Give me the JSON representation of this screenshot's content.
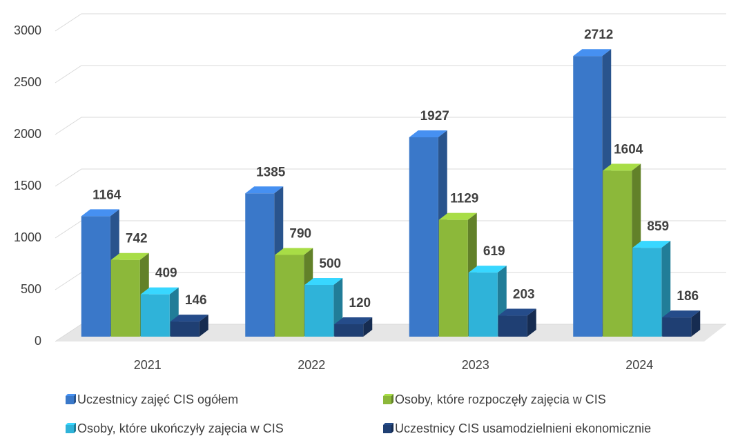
{
  "chart_data": {
    "type": "bar3d",
    "categories": [
      "2021",
      "2022",
      "2023",
      "2024"
    ],
    "series": [
      {
        "name": "Uczestnicy zajęć CIS ogółem",
        "color": "#3a78c9",
        "values": [
          1164,
          1385,
          1927,
          2712
        ]
      },
      {
        "name": "Osoby, które rozpoczęły zajęcia w CIS",
        "color": "#8cb83a",
        "values": [
          742,
          790,
          1129,
          1604
        ]
      },
      {
        "name": "Osoby, które ukończyły zajęcia w CIS",
        "color": "#2fb3d9",
        "values": [
          409,
          500,
          619,
          859
        ]
      },
      {
        "name": "Uczestnicy CIS usamodzielnieni ekonomicznie",
        "color": "#1f3f73",
        "values": [
          146,
          120,
          203,
          186
        ]
      }
    ],
    "ylim": [
      0,
      3000
    ],
    "yticks": [
      0,
      500,
      1000,
      1500,
      2000,
      2500,
      3000
    ],
    "grid": true,
    "legend": "bottom"
  }
}
